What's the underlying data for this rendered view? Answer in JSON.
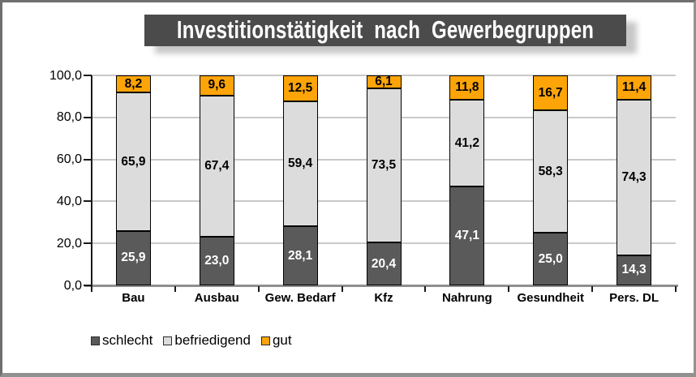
{
  "chart_data": {
    "type": "bar",
    "stacked": true,
    "title": "Investitionstätigkeit nach Gewerbegruppen",
    "title_bg_color": "#4b4b4b",
    "categories": [
      "Bau",
      "Ausbau",
      "Gew. Bedarf",
      "Kfz",
      "Nahrung",
      "Gesundheit",
      "Pers. DL"
    ],
    "series": [
      {
        "name": "schlecht",
        "color": "#5a5a5a",
        "text_color": "#ffffff",
        "values": [
          25.9,
          23.0,
          28.1,
          20.4,
          47.1,
          25.0,
          14.3
        ],
        "labels": [
          "25,9",
          "23,0",
          "28,1",
          "20,4",
          "47,1",
          "25,0",
          "14,3"
        ]
      },
      {
        "name": "befriedigend",
        "color": "#dcdcdc",
        "text_color": "#000000",
        "values": [
          65.9,
          67.4,
          59.4,
          73.5,
          41.2,
          58.3,
          74.3
        ],
        "labels": [
          "65,9",
          "67,4",
          "59,4",
          "73,5",
          "41,2",
          "58,3",
          "74,3"
        ]
      },
      {
        "name": "gut",
        "color": "#fca408",
        "text_color": "#000000",
        "values": [
          8.2,
          9.6,
          12.5,
          6.1,
          11.8,
          16.7,
          11.4
        ],
        "labels": [
          "8,2",
          "9,6",
          "12,5",
          "6,1",
          "11,8",
          "16,7",
          "11,4"
        ]
      }
    ],
    "y_axis": {
      "min": 0,
      "max": 100,
      "tick_values": [
        0,
        20,
        40,
        60,
        80,
        100
      ],
      "tick_labels": [
        "0,0",
        "20,0",
        "40,0",
        "60,0",
        "80,0",
        "100,0"
      ]
    },
    "grid": true,
    "legend_position": "bottom-left",
    "legend_entries": [
      "schlecht",
      "befriedigend",
      "gut"
    ]
  }
}
